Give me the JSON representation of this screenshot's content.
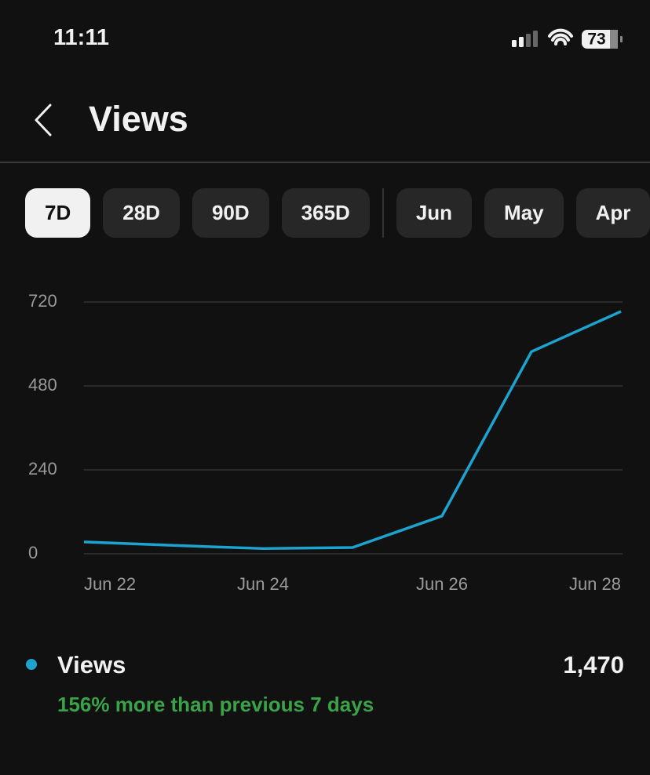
{
  "status_bar": {
    "time": "11:11",
    "battery": "73"
  },
  "header": {
    "title": "Views"
  },
  "tabs": [
    "7D",
    "28D",
    "90D",
    "365D",
    "Jun",
    "May",
    "Apr"
  ],
  "chart_data": {
    "type": "line",
    "categories": [
      "Jun 22",
      null,
      "Jun 24",
      null,
      "Jun 26",
      null,
      "Jun 28"
    ],
    "series": [
      {
        "name": "Views",
        "color": "#1ca3d0",
        "values": [
          34,
          24,
          15,
          18,
          108,
          578,
          693
        ]
      }
    ],
    "ylim": [
      0,
      720
    ],
    "yticks": [
      0,
      240,
      480,
      720
    ],
    "grid": true
  },
  "summary": {
    "total": "1,470",
    "comparison": "156% more than previous 7 days"
  }
}
